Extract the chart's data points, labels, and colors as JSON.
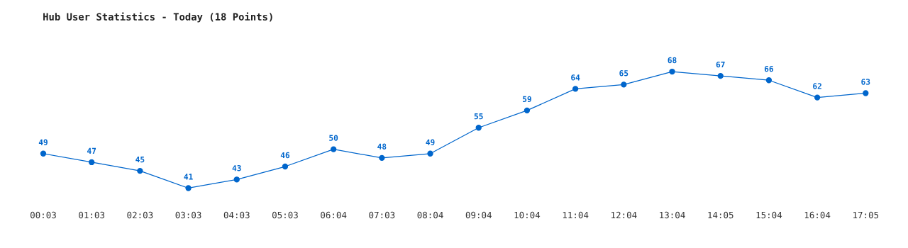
{
  "chart_data": {
    "type": "line",
    "title": "Hub User Statistics - Today (18 Points)",
    "categories": [
      "00:03",
      "01:03",
      "02:03",
      "03:03",
      "04:03",
      "05:03",
      "06:04",
      "07:03",
      "08:04",
      "09:04",
      "10:04",
      "11:04",
      "12:04",
      "13:04",
      "14:05",
      "15:04",
      "16:04",
      "17:05"
    ],
    "series": [
      {
        "color": "#0066cc",
        "values": [
          49,
          47,
          45,
          41,
          43,
          46,
          50,
          48,
          49,
          55,
          59,
          64,
          65,
          68,
          67,
          66,
          62,
          63
        ]
      }
    ],
    "data_labels": true,
    "marker": "circle",
    "line_style": "solid",
    "grid": false,
    "legend": false,
    "tick_labels": "x"
  }
}
